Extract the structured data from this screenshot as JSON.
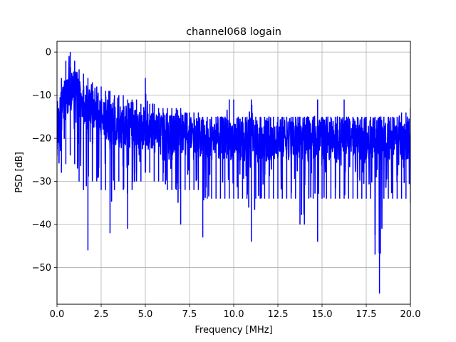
{
  "chart_data": {
    "type": "line",
    "title": "channel068 logain",
    "xlabel": "Frequency [MHz]",
    "ylabel": "PSD [dB]",
    "xlim": [
      0,
      20
    ],
    "ylim": [
      -58.5,
      2.5
    ],
    "grid": true,
    "x_ticks": [
      0,
      2.5,
      5,
      7.5,
      10,
      12.5,
      15,
      17.5,
      20
    ],
    "x_tick_labels": [
      "0.0",
      "2.5",
      "5.0",
      "7.5",
      "10.0",
      "12.5",
      "15.0",
      "17.5",
      "20.0"
    ],
    "y_ticks": [
      0,
      -10,
      -20,
      -30,
      -40,
      -50
    ],
    "y_tick_labels": [
      "0",
      "−10",
      "−20",
      "−30",
      "−40",
      "−50"
    ],
    "series": [
      {
        "color": "#0000ff",
        "x": [
          0.0,
          0.25,
          0.5,
          0.75,
          1.0,
          1.25,
          1.5,
          1.75,
          2.0,
          2.25,
          2.5,
          2.75,
          3.0,
          3.25,
          3.5,
          3.75,
          4.0,
          4.25,
          4.5,
          4.75,
          5.0,
          5.25,
          5.5,
          5.75,
          6.0,
          6.25,
          6.5,
          6.75,
          7.0,
          7.25,
          7.5,
          7.75,
          8.0,
          8.25,
          8.5,
          8.75,
          9.0,
          9.25,
          9.5,
          9.75,
          10.0,
          10.25,
          10.5,
          10.75,
          11.0,
          11.25,
          11.5,
          11.75,
          12.0,
          12.25,
          12.5,
          12.75,
          13.0,
          13.25,
          13.5,
          13.75,
          14.0,
          14.25,
          14.5,
          14.75,
          15.0,
          15.25,
          15.5,
          15.75,
          16.0,
          16.25,
          16.5,
          16.75,
          17.0,
          17.25,
          17.5,
          17.75,
          18.0,
          18.25,
          18.5,
          18.75,
          19.0,
          19.25,
          19.5,
          19.75,
          20.0
        ],
        "mean": [
          -18,
          -14,
          -10,
          -8,
          -8,
          -10,
          -12,
          -13,
          -14,
          -15,
          -15,
          -16,
          -16,
          -17,
          -17,
          -17,
          -17,
          -18,
          -18,
          -18,
          -18,
          -18,
          -18,
          -18,
          -19,
          -19,
          -19,
          -19,
          -19,
          -19,
          -19,
          -20,
          -20,
          -20,
          -20,
          -20,
          -20,
          -20,
          -20,
          -20,
          -20,
          -20,
          -20,
          -20,
          -20,
          -20,
          -20,
          -20,
          -20,
          -20,
          -20,
          -20,
          -20,
          -20,
          -20,
          -20,
          -20,
          -20,
          -20,
          -20,
          -20,
          -20,
          -20,
          -20,
          -20,
          -20,
          -20,
          -20,
          -20,
          -20,
          -20,
          -20,
          -20,
          -20,
          -20,
          -20,
          -20,
          -20,
          -20,
          -20,
          -20
        ],
        "upper": [
          -12,
          -6,
          -2,
          0,
          -2,
          -4,
          -5,
          -6,
          -7,
          -8,
          -8,
          -9,
          -9,
          -10,
          -10,
          -10,
          -11,
          -11,
          -11,
          -12,
          -6,
          -12,
          -12,
          -13,
          -13,
          -13,
          -13,
          -13,
          -13,
          -14,
          -14,
          -14,
          -14,
          -15,
          -15,
          -15,
          -15,
          -15,
          -15,
          -11,
          -11,
          -15,
          -15,
          -15,
          -11,
          -15,
          -15,
          -15,
          -15,
          -15,
          -15,
          -15,
          -15,
          -15,
          -15,
          -15,
          -15,
          -15,
          -15,
          -11,
          -15,
          -15,
          -15,
          -15,
          -15,
          -11,
          -15,
          -15,
          -15,
          -15,
          -15,
          -15,
          -15,
          -15,
          -15,
          -15,
          -15,
          -15,
          -14,
          -14,
          -13
        ],
        "lower": [
          -24,
          -28,
          -26,
          -24,
          -26,
          -30,
          -32,
          -46,
          -30,
          -30,
          -32,
          -32,
          -42,
          -32,
          -30,
          -32,
          -41,
          -32,
          -30,
          -30,
          -28,
          -28,
          -30,
          -30,
          -30,
          -32,
          -32,
          -32,
          -40,
          -32,
          -32,
          -32,
          -32,
          -43,
          -34,
          -34,
          -34,
          -34,
          -34,
          -34,
          -34,
          -34,
          -34,
          -34,
          -44,
          -34,
          -34,
          -34,
          -34,
          -34,
          -34,
          -34,
          -34,
          -34,
          -34,
          -40,
          -40,
          -34,
          -34,
          -44,
          -34,
          -34,
          -34,
          -34,
          -34,
          -34,
          -34,
          -34,
          -34,
          -34,
          -34,
          -34,
          -47,
          -56,
          -34,
          -34,
          -34,
          -34,
          -34,
          -34,
          -35
        ]
      }
    ]
  }
}
